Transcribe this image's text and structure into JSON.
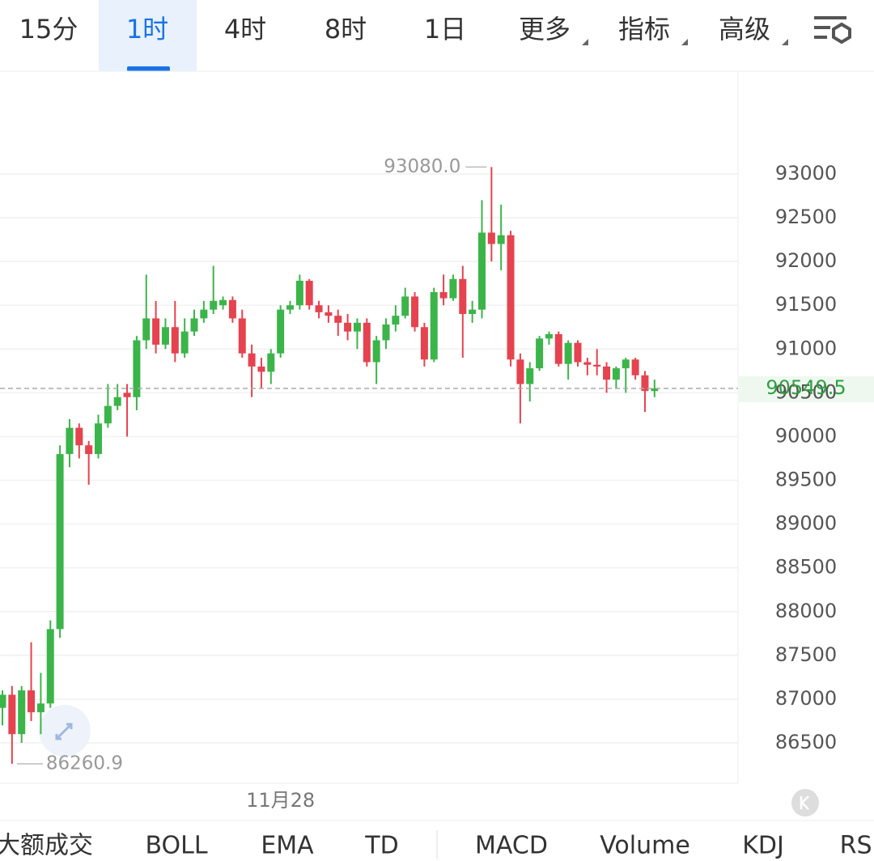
{
  "tabs": [
    "15分",
    "1时",
    "4时",
    "8时",
    "1日",
    "更多",
    "指标",
    "高级"
  ],
  "active_tab": 1,
  "indicators": [
    "大额成交",
    "BOLL",
    "EMA",
    "TD",
    "MACD",
    "Volume",
    "KDJ",
    "RSI"
  ],
  "chart_data": {
    "type": "candlestick",
    "categories": [
      null,
      null,
      null,
      null,
      null,
      null,
      null,
      null,
      null,
      null,
      null,
      null,
      null,
      null,
      null,
      null,
      null,
      null,
      null,
      null,
      null,
      null,
      null,
      null,
      null,
      null,
      null,
      null,
      null,
      "11月28",
      null,
      null,
      null,
      null,
      null,
      null,
      null,
      null,
      null,
      null,
      null,
      null,
      null,
      null,
      null,
      null,
      null,
      null,
      null,
      null,
      null,
      null,
      null,
      null,
      null,
      null,
      null,
      null,
      null,
      null,
      null,
      null,
      null,
      null,
      null,
      null,
      null,
      null,
      null
    ],
    "open": [
      86900,
      87050,
      86600,
      87100,
      86850,
      86950,
      87800,
      89800,
      90100,
      89900,
      89800,
      90150,
      90350,
      90500,
      90450,
      91100,
      91350,
      91050,
      91250,
      90950,
      91200,
      91350,
      91450,
      91500,
      91560,
      91350,
      90950,
      90800,
      90740,
      90950,
      91450,
      91500,
      91780,
      91500,
      91420,
      91380,
      91300,
      91200,
      91300,
      90850,
      91100,
      91280,
      91380,
      91600,
      91250,
      90880,
      91650,
      91580,
      91800,
      91400,
      91450,
      92330,
      92200,
      92300,
      90880,
      90600,
      90780,
      91120,
      91170,
      90830,
      91070,
      90850,
      90820,
      90800,
      90650,
      90780,
      90880,
      90700,
      90520
    ],
    "close": [
      87050,
      86600,
      87100,
      86850,
      86950,
      87800,
      89800,
      90100,
      89900,
      89800,
      90150,
      90350,
      90450,
      90450,
      91100,
      91350,
      91050,
      91250,
      90950,
      91200,
      91350,
      91450,
      91550,
      91560,
      91350,
      90950,
      90800,
      90740,
      90950,
      91450,
      91500,
      91780,
      91500,
      91420,
      91380,
      91300,
      91200,
      91300,
      90850,
      91100,
      91280,
      91380,
      91600,
      91250,
      90880,
      91650,
      91580,
      91800,
      91400,
      91450,
      92330,
      92200,
      92300,
      90880,
      90600,
      90780,
      91120,
      91170,
      90830,
      91070,
      90850,
      90820,
      90800,
      90650,
      90780,
      90880,
      90700,
      90520,
      90549.5
    ],
    "high": [
      87100,
      87150,
      87150,
      87650,
      87300,
      87900,
      89900,
      90200,
      90150,
      89950,
      90250,
      90600,
      90600,
      90600,
      91150,
      91850,
      91550,
      91350,
      91550,
      91350,
      91450,
      91550,
      91950,
      91600,
      91600,
      91450,
      91050,
      90900,
      91000,
      91500,
      91550,
      91850,
      91800,
      91550,
      91500,
      91450,
      91400,
      91350,
      91350,
      91150,
      91350,
      91500,
      91700,
      91650,
      91300,
      91700,
      91850,
      91850,
      91950,
      91550,
      92700,
      93080,
      92650,
      92350,
      90950,
      90850,
      91150,
      91200,
      91200,
      91100,
      91100,
      90900,
      91000,
      90850,
      90800,
      90900,
      90900,
      90750,
      90650
    ],
    "low": [
      86700,
      86260.9,
      86500,
      86750,
      86600,
      86900,
      87700,
      89650,
      89750,
      89450,
      89750,
      90100,
      90300,
      90000,
      90300,
      91000,
      90950,
      91000,
      90850,
      90900,
      91150,
      91300,
      91400,
      91450,
      91300,
      90900,
      90450,
      90550,
      90600,
      90900,
      91400,
      91450,
      91450,
      91350,
      91300,
      91150,
      91100,
      91000,
      90800,
      90600,
      91000,
      91200,
      91350,
      91200,
      90800,
      90850,
      91500,
      91550,
      90900,
      91300,
      91350,
      92000,
      91900,
      90800,
      90150,
      90400,
      90750,
      91050,
      90800,
      90650,
      90800,
      90700,
      90700,
      90500,
      90550,
      90500,
      90650,
      90280,
      90450
    ],
    "up_color": "#3bb54a",
    "down_color": "#e5434f",
    "ylim": [
      86038,
      94174
    ],
    "yticks": [
      86500,
      87000,
      87500,
      88000,
      88500,
      89000,
      89500,
      90000,
      90500,
      91000,
      91500,
      92000,
      92500,
      93000
    ],
    "grid": true,
    "high_annotation": {
      "value": 93080,
      "label": "93080.0"
    },
    "low_annotation": {
      "value": 86260.9,
      "label": "86260.9"
    },
    "last_price": 90549.5
  }
}
